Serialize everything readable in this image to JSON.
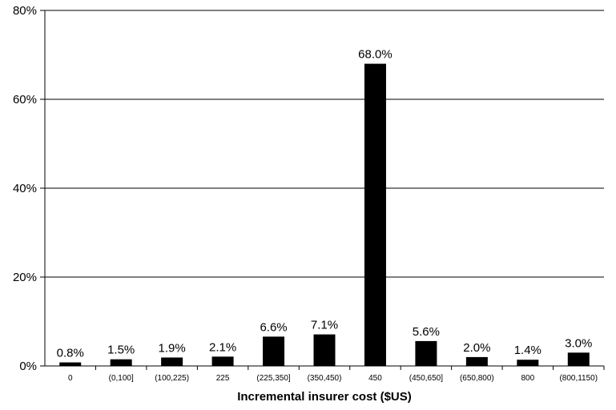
{
  "chart_data": {
    "type": "bar",
    "title": "",
    "xlabel": "Incremental insurer cost ($US)",
    "ylabel": "",
    "categories": [
      "0",
      "(0,100]",
      "(100,225)",
      "225",
      "(225,350]",
      "(350,450)",
      "450",
      "(450,650]",
      "(650,800)",
      "800",
      "(800,1150)"
    ],
    "values": [
      0.8,
      1.5,
      1.9,
      2.1,
      6.6,
      7.1,
      68.0,
      5.6,
      2.0,
      1.4,
      3.0
    ],
    "data_labels": [
      "0.8%",
      "1.5%",
      "1.9%",
      "2.1%",
      "6.6%",
      "7.1%",
      "68.0%",
      "5.6%",
      "2.0%",
      "1.4%",
      "3.0%"
    ],
    "ylim": [
      0,
      80
    ],
    "yticks": [
      0,
      20,
      40,
      60,
      80
    ],
    "ytick_labels": [
      "0%",
      "20%",
      "40%",
      "60%",
      "80%"
    ],
    "grid": true,
    "legend": "none",
    "bar_color": "#000000"
  }
}
